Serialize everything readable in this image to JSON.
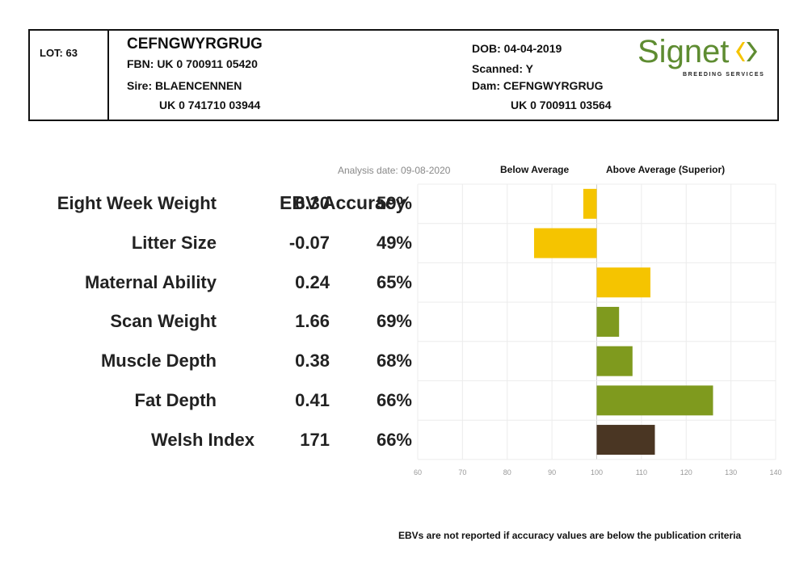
{
  "header": {
    "lot": "LOT: 63",
    "name": "CEFNGWYRGRUG",
    "fbn": "FBN: UK 0 700911 05420",
    "sire": "Sire: BLAENCENNEN",
    "sire_id": "UK 0 741710 03944",
    "dob": "DOB: 04-04-2019",
    "scanned": "Scanned: Y",
    "dam": "Dam: CEFNGWYRGRUG",
    "dam_id": "UK 0 700911 03564",
    "logo_text": "Signet",
    "logo_sub": "BREEDING SERVICES"
  },
  "chart_data": {
    "type": "bar",
    "orientation": "horizontal",
    "analysis_date": "Analysis date: 09-08-2020",
    "below_label": "Below Average",
    "above_label": "Above Average (Superior)",
    "ebv_accuracy_header": "EBV Accuracy",
    "baseline": 100,
    "xlim": [
      60,
      140
    ],
    "xticks": [
      60,
      70,
      80,
      90,
      100,
      110,
      120,
      130,
      140
    ],
    "grid": true,
    "categories": [
      "Eight Week Weight",
      "Litter Size",
      "Maternal Ability",
      "Scan Weight",
      "Muscle Depth",
      "Fat Depth",
      "Welsh Index"
    ],
    "ebv": [
      "0.30",
      "-0.07",
      "0.24",
      "1.66",
      "0.38",
      "0.41",
      "171"
    ],
    "accuracy": [
      "59%",
      "49%",
      "65%",
      "69%",
      "68%",
      "66%",
      "66%"
    ],
    "values": [
      97,
      86,
      112,
      105,
      108,
      126,
      113
    ],
    "colors": [
      "#f5c400",
      "#f5c400",
      "#f5c400",
      "#7f9a1e",
      "#7f9a1e",
      "#7f9a1e",
      "#4a3623"
    ],
    "footnote": "EBVs are not reported if accuracy values are below the publication criteria"
  }
}
